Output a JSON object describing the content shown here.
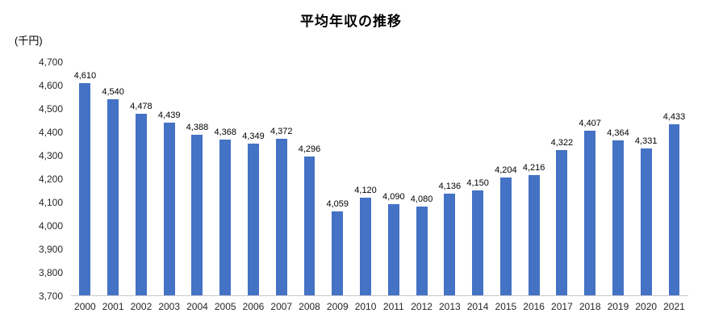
{
  "chart_data": {
    "type": "bar",
    "title": "平均年収の推移",
    "ylabel": "(千円)",
    "xlabel": "",
    "categories": [
      "2000",
      "2001",
      "2002",
      "2003",
      "2004",
      "2005",
      "2006",
      "2007",
      "2008",
      "2009",
      "2010",
      "2011",
      "2012",
      "2013",
      "2014",
      "2015",
      "2016",
      "2017",
      "2018",
      "2019",
      "2020",
      "2021"
    ],
    "values": [
      4610,
      4540,
      4478,
      4439,
      4388,
      4368,
      4349,
      4372,
      4296,
      4059,
      4120,
      4090,
      4080,
      4136,
      4150,
      4204,
      4216,
      4322,
      4407,
      4364,
      4331,
      4433
    ],
    "ylim": [
      3700,
      4700
    ],
    "ytick_step": 100,
    "bar_color": "#4472C4",
    "grid": false,
    "legend": false,
    "data_labels": true,
    "axis_line_color": "#c9c9c9"
  }
}
